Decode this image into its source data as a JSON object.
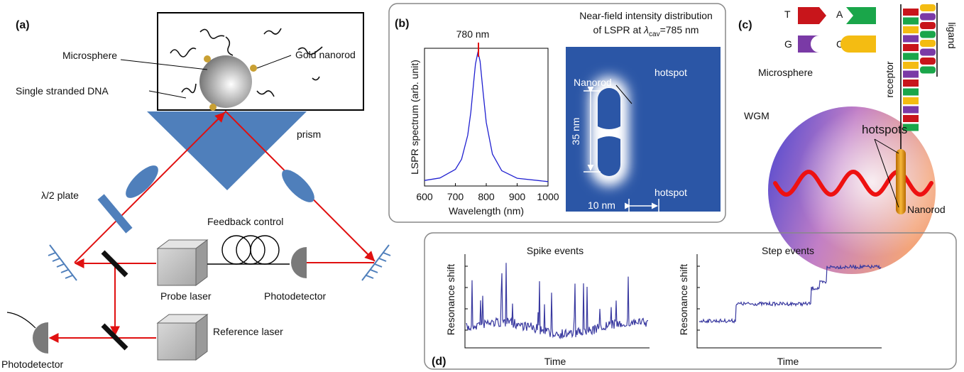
{
  "panel_a": {
    "label": "(a)",
    "microsphere": "Microsphere",
    "gold_nanorod": "Gold nanorod",
    "dna": "Single stranded DNA",
    "prism": "prism",
    "plate": "λ/2 plate",
    "feedback": "Feedback control",
    "probe_laser": "Probe laser",
    "photodetector_1": "Photodetector",
    "reference_laser": "Reference laser",
    "photodetector_2": "Photodetector"
  },
  "panel_b": {
    "label": "(b)",
    "peak_label": "780 nm",
    "y_label": "LSPR spectrum (arb. unit)",
    "x_label": "Wavelength (nm)",
    "xlim": [
      600,
      1000
    ],
    "xticks": [
      600,
      700,
      800,
      900,
      1000
    ],
    "map_title_1": "Near-field intensity distribution",
    "map_title_2": [
      "of LSPR at ",
      "λ",
      "cav",
      "=785 nm"
    ],
    "nanorod": "Nanorod",
    "hotspot_top": "hotspot",
    "hotspot_bottom": "hotspot",
    "length": "35 nm",
    "width": "10 nm"
  },
  "panel_c": {
    "label": "(c)",
    "T": "T",
    "A": "A",
    "G": "G",
    "C": "C",
    "microsphere": "Microsphere",
    "wgm": "WGM",
    "hotspots": "hotspots",
    "receptor": "receptor",
    "ligand": "ligand",
    "nanorod": "Nanorod"
  },
  "panel_d": {
    "label": "(d)",
    "spike_title": "Spike events",
    "step_title": "Step events",
    "y_label_1": "Resonance shift",
    "y_label_2": "Resonance shift",
    "x_label_1": "Time",
    "x_label_2": "Time"
  }
}
